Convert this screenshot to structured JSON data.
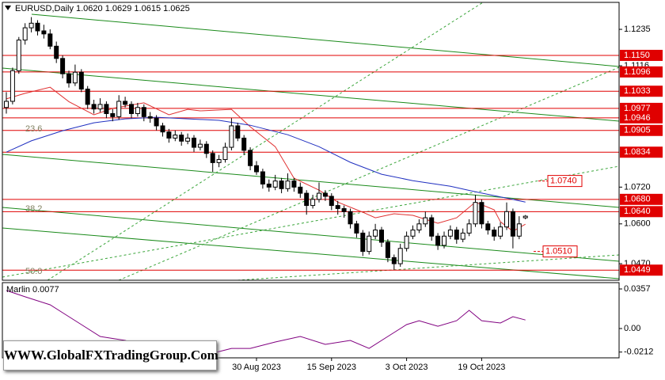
{
  "chart_data": {
    "type": "candlestick",
    "title": "EURUSD,Daily  1.0620 1.0629 1.0615 1.0625",
    "ylim": [
      1.0416,
      1.1323
    ],
    "yticks": [
      1.1235,
      1.1116,
      {
        "value": 1.072,
        "label": "1.0720"
      },
      {
        "value": 1.06,
        "label": "1.0600"
      },
      {
        "value": 1.047,
        "label": "1.0470"
      }
    ],
    "levels": [
      {
        "value": 1.115,
        "label": "1.1150"
      },
      1.1096,
      1.1033,
      1.0977,
      1.0946,
      1.0905,
      1.0834,
      {
        "value": 1.068,
        "label": "1.0680"
      },
      {
        "value": 1.064,
        "label": "1.0640"
      },
      1.0449
    ],
    "level_color": "#e00000",
    "annotations": [
      {
        "value": 1.074,
        "label": "1.0740"
      },
      {
        "value": 1.051,
        "label": "1.0510"
      }
    ],
    "fib_labels": [
      "23.6",
      "38.2",
      "50.0"
    ],
    "categories": [
      null,
      null,
      null,
      null,
      null,
      null,
      null,
      null,
      null,
      null,
      null,
      null,
      null,
      null,
      null,
      null,
      null,
      null,
      null,
      null,
      null,
      null,
      null,
      null,
      null,
      null,
      null,
      null,
      null,
      null,
      null,
      null,
      null,
      null,
      null,
      null,
      null,
      null,
      null,
      null,
      "30 Aug 2023",
      null,
      null,
      null,
      null,
      null,
      null,
      null,
      null,
      null,
      null,
      null,
      "15 Sep 2023",
      null,
      null,
      null,
      null,
      null,
      null,
      null,
      null,
      null,
      null,
      null,
      "3 Oct 2023",
      null,
      null,
      null,
      null,
      null,
      null,
      null,
      null,
      null,
      null,
      null,
      "19 Oct 2023",
      null,
      null,
      null,
      null,
      null,
      null,
      null
    ],
    "candles": [
      [
        1.098,
        1.103,
        1.096,
        1.1
      ],
      [
        1.1,
        1.111,
        1.099,
        1.11
      ],
      [
        1.11,
        1.121,
        1.109,
        1.12
      ],
      [
        1.12,
        1.1255,
        1.1185,
        1.124
      ],
      [
        1.124,
        1.1275,
        1.1225,
        1.1255
      ],
      [
        1.1255,
        1.1265,
        1.1215,
        1.123
      ],
      [
        1.123,
        1.125,
        1.1205,
        1.122
      ],
      [
        1.122,
        1.1235,
        1.117,
        1.118
      ],
      [
        1.118,
        1.1195,
        1.1125,
        1.114
      ],
      [
        1.114,
        1.115,
        1.1075,
        1.109
      ],
      [
        1.109,
        1.11,
        1.1045,
        1.106
      ],
      [
        1.106,
        1.112,
        1.105,
        1.1095
      ],
      [
        1.1095,
        1.1105,
        1.103,
        1.104
      ],
      [
        1.104,
        1.105,
        1.0975,
        1.099
      ],
      [
        1.099,
        1.1005,
        1.096,
        1.0975
      ],
      [
        1.0975,
        1.101,
        1.0965,
        1.099
      ],
      [
        1.099,
        1.1,
        1.0945,
        1.096
      ],
      [
        1.096,
        1.0975,
        1.0935,
        1.095
      ],
      [
        1.095,
        1.102,
        1.094,
        1.1
      ],
      [
        1.1,
        1.1015,
        1.098,
        1.099
      ],
      [
        1.099,
        1.1,
        1.0945,
        1.096
      ],
      [
        1.096,
        1.0995,
        1.095,
        1.098
      ],
      [
        1.098,
        1.099,
        1.0935,
        1.095
      ],
      [
        1.095,
        1.0965,
        1.093,
        1.0945
      ],
      [
        1.0945,
        1.0955,
        1.0905,
        1.092
      ],
      [
        1.092,
        1.093,
        1.0885,
        1.09
      ],
      [
        1.09,
        1.091,
        1.0865,
        1.088
      ],
      [
        1.088,
        1.0905,
        1.087,
        1.089
      ],
      [
        1.089,
        1.09,
        1.0855,
        1.087
      ],
      [
        1.087,
        1.0895,
        1.086,
        1.088
      ],
      [
        1.088,
        1.089,
        1.0835,
        1.085
      ],
      [
        1.085,
        1.0875,
        1.084,
        1.086
      ],
      [
        1.086,
        1.087,
        1.0815,
        1.083
      ],
      [
        1.083,
        1.084,
        1.077,
        1.08
      ],
      [
        1.08,
        1.0825,
        1.0785,
        1.081
      ],
      [
        1.081,
        1.0865,
        1.08,
        1.085
      ],
      [
        1.085,
        1.0945,
        1.084,
        1.092
      ],
      [
        1.092,
        1.093,
        1.087,
        1.088
      ],
      [
        1.088,
        1.089,
        1.0825,
        1.084
      ],
      [
        1.084,
        1.085,
        1.0775,
        1.079
      ],
      [
        1.079,
        1.0805,
        1.076,
        1.077
      ],
      [
        1.077,
        1.078,
        1.0715,
        1.073
      ],
      [
        1.073,
        1.0745,
        1.0705,
        1.072
      ],
      [
        1.072,
        1.076,
        1.071,
        1.074
      ],
      [
        1.074,
        1.075,
        1.07,
        1.0715
      ],
      [
        1.0715,
        1.0765,
        1.0705,
        1.074
      ],
      [
        1.074,
        1.075,
        1.0705,
        1.072
      ],
      [
        1.072,
        1.0735,
        1.0685,
        1.07
      ],
      [
        1.07,
        1.071,
        1.063,
        1.066
      ],
      [
        1.066,
        1.0695,
        1.065,
        1.068
      ],
      [
        1.068,
        1.0735,
        1.067,
        1.07
      ],
      [
        1.07,
        1.071,
        1.0675,
        1.069
      ],
      [
        1.069,
        1.07,
        1.0645,
        1.066
      ],
      [
        1.066,
        1.0675,
        1.063,
        1.065
      ],
      [
        1.065,
        1.066,
        1.062,
        1.064
      ],
      [
        1.064,
        1.065,
        1.0585,
        1.06
      ],
      [
        1.06,
        1.061,
        1.0555,
        1.057
      ],
      [
        1.057,
        1.058,
        1.0495,
        1.051
      ],
      [
        1.051,
        1.0575,
        1.05,
        1.056
      ],
      [
        1.056,
        1.06,
        1.055,
        1.058
      ],
      [
        1.058,
        1.059,
        1.0525,
        1.054
      ],
      [
        1.054,
        1.055,
        1.0475,
        1.049
      ],
      [
        1.049,
        1.05,
        1.045,
        1.047
      ],
      [
        1.047,
        1.0535,
        1.046,
        1.052
      ],
      [
        1.052,
        1.0575,
        1.051,
        1.056
      ],
      [
        1.056,
        1.0595,
        1.055,
        1.058
      ],
      [
        1.058,
        1.0615,
        1.057,
        1.06
      ],
      [
        1.06,
        1.064,
        1.059,
        1.062
      ],
      [
        1.062,
        1.063,
        1.0545,
        1.056
      ],
      [
        1.056,
        1.057,
        1.0515,
        1.053
      ],
      [
        1.053,
        1.0575,
        1.052,
        1.056
      ],
      [
        1.056,
        1.0595,
        1.055,
        1.058
      ],
      [
        1.058,
        1.059,
        1.0535,
        1.055
      ],
      [
        1.055,
        1.0585,
        1.054,
        1.057
      ],
      [
        1.057,
        1.0615,
        1.056,
        1.06
      ],
      [
        1.06,
        1.0695,
        1.059,
        1.067
      ],
      [
        1.067,
        1.068,
        1.0585,
        1.06
      ],
      [
        1.06,
        1.061,
        1.0565,
        1.058
      ],
      [
        1.058,
        1.059,
        1.0545,
        1.056
      ],
      [
        1.056,
        1.0605,
        1.055,
        1.059
      ],
      [
        1.059,
        1.067,
        1.058,
        1.064
      ],
      [
        1.064,
        1.065,
        1.052,
        1.056
      ],
      [
        1.056,
        1.0625,
        1.055,
        1.06
      ],
      [
        1.062,
        1.0629,
        1.0615,
        1.0625
      ]
    ],
    "ma": [
      {
        "color": "#e03030",
        "x": [
          0,
          3,
          7,
          10,
          14,
          17,
          22,
          26,
          29,
          31,
          36,
          39,
          43,
          46,
          50,
          53,
          57,
          59,
          62,
          65,
          69,
          72,
          75,
          78,
          79,
          81,
          83
        ],
        "values": [
          1.1008,
          1.1026,
          1.1046,
          1.0999,
          1.0956,
          1.0977,
          1.0995,
          1.0956,
          1.0974,
          1.0969,
          1.0974,
          1.0917,
          1.0852,
          1.0749,
          1.071,
          1.0671,
          1.0638,
          1.062,
          1.0633,
          1.0628,
          1.0602,
          1.062,
          1.0671,
          1.0646,
          1.0607,
          1.0576,
          1.0599
        ]
      },
      {
        "color": "#2030c0",
        "x": [
          0,
          4,
          9,
          14,
          19,
          24,
          29,
          34,
          39,
          45,
          50,
          55,
          60,
          65,
          71,
          75,
          80,
          83
        ],
        "values": [
          1.0834,
          1.0871,
          1.0904,
          1.093,
          1.0943,
          1.0948,
          1.0943,
          1.0938,
          1.0922,
          1.0891,
          1.0852,
          1.0801,
          1.0762,
          1.0741,
          1.0723,
          1.0705,
          1.0684,
          1.0671
        ]
      }
    ],
    "indicator": {
      "title": "Marlin 0.0077",
      "color": "#800080",
      "ylim": [
        -0.0264,
        0.0414
      ],
      "yticks": [
        0.0357,
        {
          "value": 0,
          "label": "0.00"
        },
        -0.0212
      ],
      "x": [
        0,
        3,
        7,
        9,
        12,
        15,
        19,
        23,
        27,
        32,
        36,
        39,
        43,
        47,
        51,
        55,
        58,
        61,
        64,
        66,
        69,
        72,
        74,
        76,
        79,
        81,
        83
      ],
      "values": [
        0.0343,
        0.0286,
        0.0214,
        0.0143,
        0.0036,
        -0.0071,
        -0.0107,
        -0.0179,
        -0.0221,
        -0.0236,
        -0.0179,
        -0.0179,
        -0.0121,
        -0.0071,
        -0.0143,
        -0.0107,
        -0.0179,
        -0.0071,
        0.0036,
        0.0071,
        0.0021,
        0.0071,
        0.0164,
        0.0071,
        0.005,
        0.0107,
        0.0077
      ]
    },
    "watermark": "WWW.GlobalFXTradingGroup.Com"
  }
}
